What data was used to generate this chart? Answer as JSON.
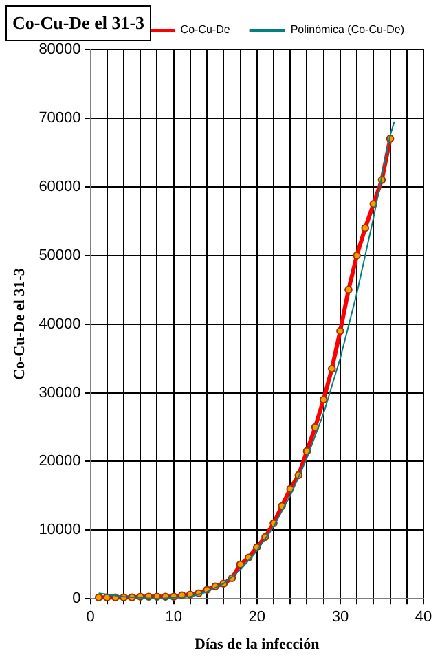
{
  "chart_data": {
    "type": "line",
    "title": "Co-Cu-De el 31-3",
    "xlabel": "Días de la infección",
    "ylabel": "Co-Cu-De el 31-3",
    "x": [
      1,
      2,
      3,
      4,
      5,
      6,
      7,
      8,
      9,
      10,
      11,
      12,
      13,
      14,
      15,
      16,
      17,
      18,
      19,
      20,
      21,
      22,
      23,
      24,
      25,
      26,
      27,
      28,
      29,
      30,
      31,
      32,
      33,
      34,
      35,
      36
    ],
    "series": [
      {
        "name": "Co-Cu-De",
        "color": "#ff0000",
        "marker": "circle",
        "values": [
          200,
          200,
          200,
          200,
          200,
          300,
          300,
          300,
          300,
          300,
          500,
          600,
          800,
          1300,
          1800,
          2200,
          3000,
          5000,
          6000,
          7500,
          9000,
          11000,
          13500,
          16000,
          18000,
          21500,
          25000,
          29000,
          33500,
          39000,
          45000,
          50000,
          54000,
          57500,
          61000,
          67000
        ]
      },
      {
        "name": "Polinómica (Co-Cu-De)",
        "color": "#008080",
        "type": "line",
        "marker": "none",
        "x": [
          1,
          4,
          8,
          12,
          14,
          16,
          18,
          20,
          22,
          24,
          26,
          28,
          30,
          32,
          34,
          36,
          36.5
        ],
        "values": [
          800,
          300,
          0,
          300,
          1000,
          2200,
          4200,
          7000,
          10500,
          15000,
          20500,
          27000,
          35000,
          44500,
          55500,
          67500,
          69500
        ]
      }
    ],
    "xlim": [
      0,
      40
    ],
    "xticks": [
      0,
      {
        "value": 2,
        "label": null
      },
      {
        "value": 4,
        "label": null
      },
      {
        "value": 6,
        "label": null
      },
      {
        "value": 8,
        "label": null
      },
      10,
      {
        "value": 12,
        "label": null
      },
      {
        "value": 14,
        "label": null
      },
      {
        "value": 16,
        "label": null
      },
      {
        "value": 18,
        "label": null
      },
      20,
      {
        "value": 22,
        "label": null
      },
      {
        "value": 24,
        "label": null
      },
      {
        "value": 26,
        "label": null
      },
      {
        "value": 28,
        "label": null
      },
      30,
      {
        "value": 32,
        "label": null
      },
      {
        "value": 34,
        "label": null
      },
      {
        "value": 36,
        "label": null
      },
      {
        "value": 38,
        "label": null
      },
      40
    ],
    "ylim": [
      0,
      80000
    ],
    "yticks": [
      0,
      10000,
      20000,
      30000,
      40000,
      50000,
      60000,
      70000,
      80000
    ],
    "grid": true,
    "legend": "top right"
  }
}
